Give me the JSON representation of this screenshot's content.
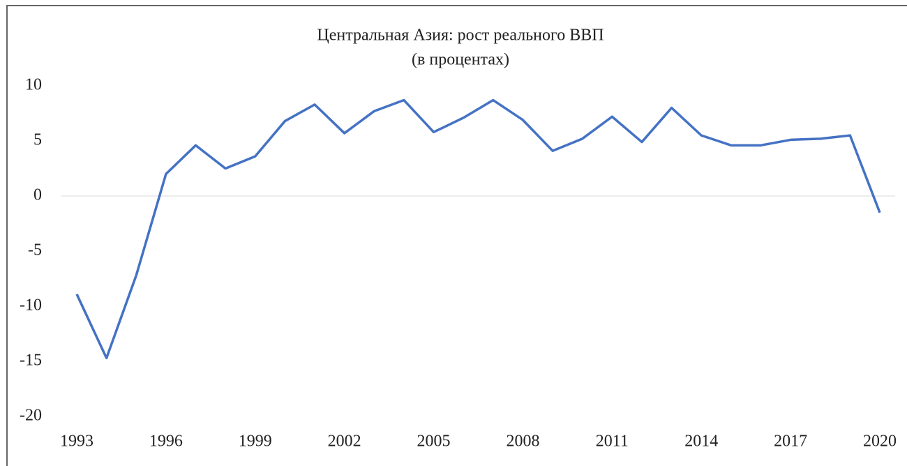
{
  "chart_data": {
    "type": "line",
    "title": "Центральная Азия: рост реального ВВП",
    "subtitle": "(в процентах)",
    "x": [
      1993,
      1994,
      1995,
      1996,
      1997,
      1998,
      1999,
      2000,
      2001,
      2002,
      2003,
      2004,
      2005,
      2006,
      2007,
      2008,
      2009,
      2010,
      2011,
      2012,
      2013,
      2014,
      2015,
      2016,
      2017,
      2018,
      2019,
      2020
    ],
    "series": [
      {
        "name": "Рост реального ВВП",
        "color": "#4472c4",
        "values": [
          -8.9,
          -14.7,
          -7.2,
          2.0,
          4.6,
          2.5,
          3.6,
          6.8,
          8.3,
          5.7,
          7.7,
          8.7,
          5.8,
          7.1,
          8.7,
          6.9,
          4.1,
          5.2,
          7.2,
          4.9,
          8.0,
          5.5,
          4.6,
          4.6,
          5.1,
          5.2,
          5.5,
          -1.5
        ]
      }
    ],
    "xlim": [
      1993,
      2020
    ],
    "xticks": [
      1993,
      1996,
      1999,
      2002,
      2005,
      2008,
      2011,
      2014,
      2017,
      2020
    ],
    "ylim": [
      -20,
      10
    ],
    "yticks": [
      -20,
      -15,
      -10,
      -5,
      0,
      5,
      10
    ],
    "grid": false
  }
}
